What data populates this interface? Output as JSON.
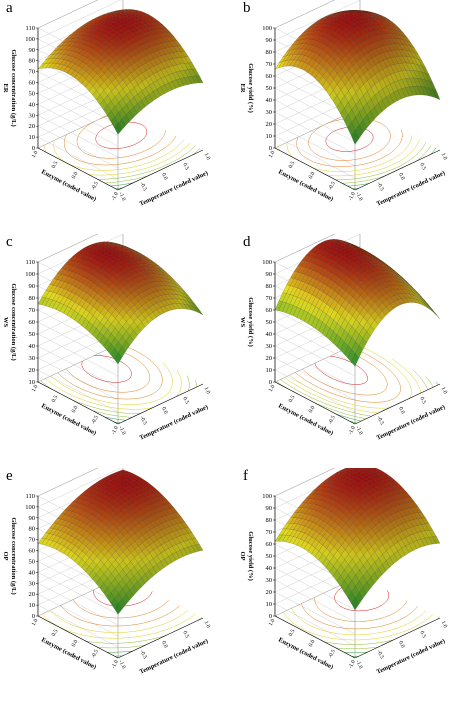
{
  "chart_data": [
    {
      "type": "surface3d",
      "panel_label": "a",
      "zlabel": "Glucose concentration (g/L)",
      "zlabel_suffix": "ER",
      "xlabel": "Temperature (coded value)",
      "ylabel": "Enzyme (coded value)",
      "x_ticks": [
        "-1.0",
        "-0.5",
        "0.0",
        "0.5",
        "1.0"
      ],
      "y_ticks": [
        "-1.0",
        "-0.5",
        "0.0",
        "0.5",
        "1.0"
      ],
      "z_ticks": [
        "0",
        "10",
        "20",
        "30",
        "40",
        "50",
        "60",
        "70",
        "80",
        "90",
        "100",
        "110"
      ],
      "zlim": [
        0,
        110
      ],
      "model": {
        "b0": 98,
        "bx": 8,
        "by": 14,
        "bxx": -13,
        "byy": -22,
        "bxy": 2
      },
      "surface_range": [
        51,
        103
      ]
    },
    {
      "type": "surface3d",
      "panel_label": "b",
      "zlabel": "Glucose yield (%)",
      "zlabel_suffix": "ER",
      "xlabel": "Temperature (coded value)",
      "ylabel": "Enzyme (coded value)",
      "x_ticks": [
        "-1.0",
        "-0.5",
        "0.0",
        "0.5",
        "1.0"
      ],
      "y_ticks": [
        "-1.0",
        "-0.5",
        "0.0",
        "0.5",
        "1.0"
      ],
      "z_ticks": [
        "0",
        "10",
        "20",
        "30",
        "40",
        "50",
        "60",
        "70",
        "80",
        "90",
        "100"
      ],
      "zlim": [
        0,
        100
      ],
      "model": {
        "b0": 96,
        "bx": 4,
        "by": 16,
        "bxx": -18,
        "byy": -24,
        "bxy": 2
      },
      "surface_range": [
        38,
        100
      ]
    },
    {
      "type": "surface3d",
      "panel_label": "c",
      "zlabel": "Glucose concentration (g/L)",
      "zlabel_suffix": "WS",
      "xlabel": "Temperature (coded value)",
      "ylabel": "Enzyme (coded value)",
      "x_ticks": [
        "-1.0",
        "-0.5",
        "0.0",
        "0.5",
        "1.0"
      ],
      "y_ticks": [
        "-1.0",
        "-0.5",
        "0.0",
        "0.5",
        "1.0"
      ],
      "z_ticks": [
        "10",
        "20",
        "30",
        "40",
        "50",
        "60",
        "70",
        "80",
        "90",
        "100",
        "110"
      ],
      "zlim": [
        10,
        110
      ],
      "model": {
        "b0": 100,
        "bx": 6,
        "by": 10,
        "bxx": -22,
        "byy": -10,
        "bxy": 2
      },
      "surface_range": [
        60,
        106
      ]
    },
    {
      "type": "surface3d",
      "panel_label": "d",
      "zlabel": "Glucose yield (%)",
      "zlabel_suffix": "WS",
      "xlabel": "Temperature (coded value)",
      "ylabel": "Enzyme (coded value)",
      "x_ticks": [
        "-1.0",
        "-0.5",
        "0.0",
        "0.5",
        "1.0"
      ],
      "y_ticks": [
        "-1.0",
        "-0.5",
        "0.0",
        "0.5",
        "1.0"
      ],
      "z_ticks": [
        "0",
        "10",
        "20",
        "30",
        "40",
        "50",
        "60",
        "70",
        "80",
        "90",
        "100"
      ],
      "zlim": [
        0,
        100
      ],
      "model": {
        "b0": 96,
        "bx": 5,
        "by": 8,
        "bxx": -30,
        "byy": -8,
        "bxy": 2
      },
      "surface_range": [
        48,
        100
      ]
    },
    {
      "type": "surface3d",
      "panel_label": "e",
      "zlabel": "Glucose concentration (g/L)",
      "zlabel_suffix": "OP",
      "xlabel": "Temperature (coded value)",
      "ylabel": "Enzyme (coded value)",
      "x_ticks": [
        "-1.0",
        "-0.5",
        "0.0",
        "0.5",
        "1.0"
      ],
      "y_ticks": [
        "-1.0",
        "-0.5",
        "0.0",
        "0.5",
        "1.0"
      ],
      "z_ticks": [
        "0",
        "10",
        "20",
        "30",
        "40",
        "50",
        "60",
        "70",
        "80",
        "90",
        "100",
        "110"
      ],
      "zlim": [
        0,
        110
      ],
      "model": {
        "b0": 88,
        "bx": 12,
        "by": 14,
        "bxx": -10,
        "byy": -12,
        "bxy": 2
      },
      "surface_range": [
        40,
        100
      ]
    },
    {
      "type": "surface3d",
      "panel_label": "f",
      "zlabel": "Glucose yield (%)",
      "zlabel_suffix": "OP",
      "xlabel": "Temperature (coded value)",
      "ylabel": "Enzyme (coded value)",
      "x_ticks": [
        "-1.0",
        "-0.5",
        "0.0",
        "0.5",
        "1.0"
      ],
      "y_ticks": [
        "-1.0",
        "-0.5",
        "0.0",
        "0.5",
        "1.0"
      ],
      "z_ticks": [
        "0",
        "10",
        "20",
        "30",
        "40",
        "50",
        "60",
        "70",
        "80",
        "90",
        "100"
      ],
      "zlim": [
        0,
        100
      ],
      "model": {
        "b0": 90,
        "bx": 12,
        "by": 12,
        "bxx": -12,
        "byy": -14,
        "bxy": 2
      },
      "surface_range": [
        40,
        100
      ]
    }
  ],
  "colors": {
    "surface_low": "#1f8f2e",
    "surface_mid": "#e8e020",
    "surface_high": "#b01010",
    "contour": [
      "#2e9a3a",
      "#8fc030",
      "#e0d020",
      "#e08020",
      "#d02020"
    ]
  }
}
